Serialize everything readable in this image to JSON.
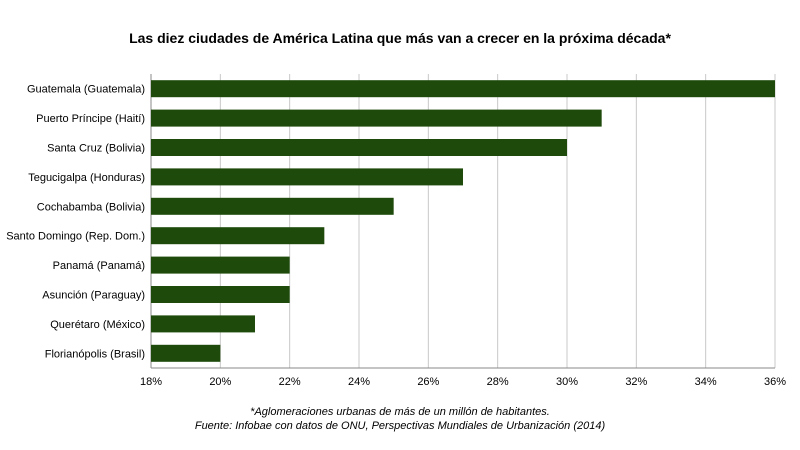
{
  "chart_data": {
    "type": "bar",
    "orientation": "horizontal",
    "title": "Las diez ciudades de América Latina que más van a crecer en la próxima década*",
    "categories": [
      "Guatemala (Guatemala)",
      "Puerto Príncipe (Haití)",
      "Santa Cruz (Bolivia)",
      "Tegucigalpa (Honduras)",
      "Cochabamba (Bolivia)",
      "Santo Domingo (Rep. Dom.)",
      "Panamá (Panamá)",
      "Asunción (Paraguay)",
      "Querétaro (México)",
      "Florianópolis (Brasil)"
    ],
    "values": [
      36,
      31,
      30,
      27,
      25,
      23,
      22,
      22,
      21,
      20
    ],
    "xlim": [
      18,
      36
    ],
    "xticks": [
      "18%",
      "20%",
      "22%",
      "24%",
      "26%",
      "28%",
      "30%",
      "32%",
      "34%",
      "36%"
    ],
    "xtick_values": [
      18,
      20,
      22,
      24,
      26,
      28,
      30,
      32,
      34,
      36
    ],
    "grid": "vertical",
    "bar_color": "#1e4a0b",
    "grid_color": "#c8c8c8"
  },
  "footnote": {
    "line1": "*Aglomeraciones urbanas de más de un millón de habitantes.",
    "line2": "Fuente: Infobae con datos de ONU, Perspectivas Mundiales de Urbanización  (2014)"
  }
}
